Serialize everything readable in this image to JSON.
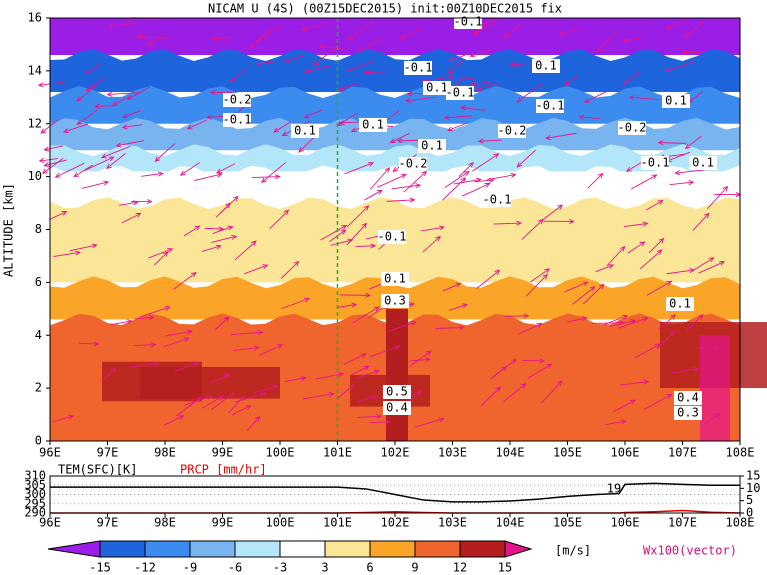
{
  "chart_data": {
    "type": "contour",
    "title": "NICAM U (4S) (00Z15DEC2015) init:00Z10DEC2015 fix",
    "ylabel": "ALTITUDE [km]",
    "xlim": [
      96,
      108
    ],
    "xticks": [
      {
        "value": 96,
        "label": "96E"
      },
      {
        "value": 97,
        "label": "97E"
      },
      {
        "value": 98,
        "label": "98E"
      },
      {
        "value": 99,
        "label": "99E"
      },
      {
        "value": 100,
        "label": "100E"
      },
      {
        "value": 101,
        "label": "101E"
      },
      {
        "value": 102,
        "label": "102E"
      },
      {
        "value": 103,
        "label": "103E"
      },
      {
        "value": 104,
        "label": "104E"
      },
      {
        "value": 105,
        "label": "105E"
      },
      {
        "value": 106,
        "label": "106E"
      },
      {
        "value": 107,
        "label": "107E"
      },
      {
        "value": 108,
        "label": "108E"
      }
    ],
    "ylim": [
      0,
      16
    ],
    "yticks": [
      0,
      2,
      4,
      6,
      8,
      10,
      12,
      14,
      16
    ],
    "marker_line_x": 101,
    "contour_labels": [
      "-0.1",
      "-0.1",
      "0.1",
      "0.1",
      "-0.1",
      "-0.2",
      "-0.1",
      "0.1",
      "-0.1",
      "0.1",
      "0.1",
      "-0.2",
      "-0.2",
      "0.1",
      "-0.2",
      "-0.1",
      "0.1",
      "-0.1",
      "-0.1",
      "0.1",
      "0.3",
      "0.1",
      "0.5",
      "0.4",
      "0.4",
      "0.3"
    ],
    "colorbar": {
      "levels": [
        -15,
        -12,
        -9,
        -6,
        -3,
        3,
        6,
        9,
        12,
        15
      ],
      "under_color": "#9b1ee6",
      "colors": [
        "#1e64dc",
        "#3c8cf0",
        "#78b4f0",
        "#b4e6fa",
        "#ffffff",
        "#fae696",
        "#faa528",
        "#f0642d",
        "#b41e1e"
      ],
      "over_color": "#e6148c",
      "unit": "[m/s]"
    },
    "vector_label": "Wx100(vector)",
    "vector_color": "#e6148c",
    "surface": {
      "tem_label": "TEM(SFC)[K]",
      "prcp_label": "PRCP [mm/hr]",
      "annotation": "19",
      "ylim": [
        290,
        310
      ],
      "yticks": [
        290,
        295,
        300,
        305,
        310
      ],
      "y2lim": [
        0,
        15
      ],
      "y2ticks": [
        0,
        5,
        10,
        15
      ],
      "x": [
        96,
        97,
        98,
        99,
        100,
        101,
        101.5,
        102,
        102.5,
        103,
        103.5,
        104,
        104.5,
        105,
        105.5,
        105.9,
        106,
        106.5,
        107,
        107.5,
        108
      ],
      "series": [
        {
          "name": "TEM(SFC)[K]",
          "color": "#000000",
          "values": [
            304,
            304,
            304,
            304,
            304,
            304,
            303,
            300,
            297,
            296,
            296,
            296.5,
            297.5,
            299,
            300,
            300.5,
            305.5,
            306,
            305.5,
            305,
            305
          ],
          "axis": "y"
        },
        {
          "name": "PRCP [mm/hr]",
          "color": "#e60000",
          "values": [
            0,
            0,
            0,
            0,
            0,
            0,
            0.2,
            0.5,
            0.2,
            0,
            0,
            0,
            0,
            0,
            0,
            0,
            0.2,
            0.5,
            1,
            0.3,
            0
          ],
          "axis": "y2"
        }
      ]
    }
  }
}
